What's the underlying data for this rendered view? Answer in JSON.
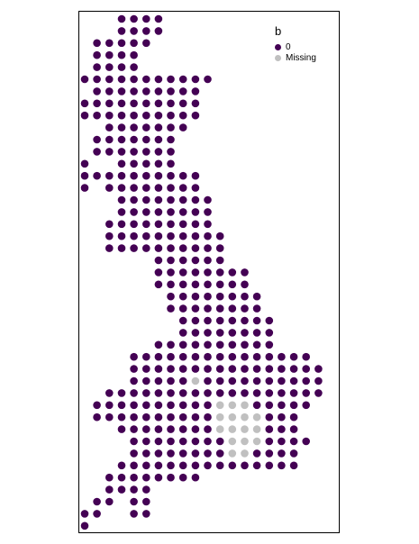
{
  "chart_data": {
    "type": "scatter",
    "title": "",
    "legend": {
      "title": "b",
      "placement": "top-right",
      "entries": [
        {
          "label": "0",
          "color": "#440154"
        },
        {
          "label": "Missing",
          "color": "#c0c0c0"
        }
      ]
    },
    "grid": false,
    "point_colors": {
      "0": "#440154",
      "Missing": "#c0c0c0"
    },
    "series": [
      {
        "name": "0",
        "x_range": [
          0,
          20
        ],
        "y_range": [
          1,
          43
        ],
        "rows": [
          {
            "y": 43,
            "x": [
              [
                3,
                6
              ]
            ]
          },
          {
            "y": 42,
            "x": [
              [
                3,
                6
              ]
            ]
          },
          {
            "y": 41,
            "x": [
              [
                1,
                5
              ]
            ]
          },
          {
            "y": 40,
            "x": [
              [
                1,
                4
              ]
            ]
          },
          {
            "y": 39,
            "x": [
              [
                1,
                4
              ]
            ]
          },
          {
            "y": 38,
            "x": [
              [
                0,
                10
              ]
            ]
          },
          {
            "y": 37,
            "x": [
              [
                1,
                9
              ]
            ]
          },
          {
            "y": 36,
            "x": [
              [
                0,
                9
              ]
            ]
          },
          {
            "y": 35,
            "x": [
              [
                0,
                9
              ]
            ]
          },
          {
            "y": 34,
            "x": [
              [
                2,
                8
              ]
            ]
          },
          {
            "y": 33,
            "x": [
              [
                1,
                7
              ]
            ]
          },
          {
            "y": 32,
            "x": [
              [
                1,
                7
              ]
            ]
          },
          {
            "y": 31,
            "x": [
              [
                0,
                0
              ],
              [
                3,
                7
              ]
            ]
          },
          {
            "y": 30,
            "x": [
              [
                0,
                9
              ]
            ]
          },
          {
            "y": 29,
            "x": [
              [
                0,
                0
              ],
              [
                2,
                9
              ]
            ]
          },
          {
            "y": 28,
            "x": [
              [
                3,
                10
              ]
            ]
          },
          {
            "y": 27,
            "x": [
              [
                3,
                10
              ]
            ]
          },
          {
            "y": 26,
            "x": [
              [
                2,
                10
              ]
            ]
          },
          {
            "y": 25,
            "x": [
              [
                2,
                11
              ]
            ]
          },
          {
            "y": 24,
            "x": [
              [
                2,
                11
              ]
            ]
          },
          {
            "y": 23,
            "x": [
              [
                6,
                11
              ]
            ]
          },
          {
            "y": 22,
            "x": [
              [
                6,
                13
              ]
            ]
          },
          {
            "y": 21,
            "x": [
              [
                6,
                13
              ]
            ]
          },
          {
            "y": 20,
            "x": [
              [
                7,
                14
              ]
            ]
          },
          {
            "y": 19,
            "x": [
              [
                7,
                14
              ]
            ]
          },
          {
            "y": 18,
            "x": [
              [
                8,
                15
              ]
            ]
          },
          {
            "y": 17,
            "x": [
              [
                8,
                15
              ]
            ]
          },
          {
            "y": 16,
            "x": [
              [
                6,
                15
              ]
            ]
          },
          {
            "y": 15,
            "x": [
              [
                4,
                18
              ]
            ]
          },
          {
            "y": 14,
            "x": [
              [
                4,
                19
              ]
            ]
          },
          {
            "y": 13,
            "x": [
              [
                4,
                19
              ]
            ]
          },
          {
            "y": 12,
            "x": [
              [
                2,
                19
              ]
            ]
          },
          {
            "y": 11,
            "x": [
              [
                1,
                18
              ]
            ]
          },
          {
            "y": 10,
            "x": [
              [
                1,
                17
              ]
            ]
          },
          {
            "y": 9,
            "x": [
              [
                3,
                17
              ]
            ]
          },
          {
            "y": 8,
            "x": [
              [
                4,
                18
              ]
            ]
          },
          {
            "y": 7,
            "x": [
              [
                4,
                17
              ]
            ]
          },
          {
            "y": 6,
            "x": [
              [
                3,
                17
              ]
            ]
          },
          {
            "y": 5,
            "x": [
              [
                2,
                9
              ]
            ]
          },
          {
            "y": 4,
            "x": [
              [
                2,
                5
              ]
            ]
          },
          {
            "y": 3,
            "x": [
              [
                1,
                2
              ],
              [
                4,
                5
              ]
            ]
          },
          {
            "y": 2,
            "x": [
              [
                0,
                1
              ],
              [
                4,
                5
              ]
            ]
          },
          {
            "y": 1,
            "x": [
              [
                0,
                0
              ]
            ]
          }
        ]
      },
      {
        "name": "Missing",
        "points": [
          [
            9,
            13
          ],
          [
            11,
            11
          ],
          [
            12,
            11
          ],
          [
            13,
            11
          ],
          [
            11,
            10
          ],
          [
            12,
            10
          ],
          [
            13,
            10
          ],
          [
            14,
            10
          ],
          [
            11,
            9
          ],
          [
            12,
            9
          ],
          [
            13,
            9
          ],
          [
            14,
            9
          ],
          [
            12,
            8
          ],
          [
            13,
            8
          ],
          [
            14,
            8
          ],
          [
            12,
            7
          ],
          [
            13,
            7
          ]
        ]
      }
    ]
  }
}
